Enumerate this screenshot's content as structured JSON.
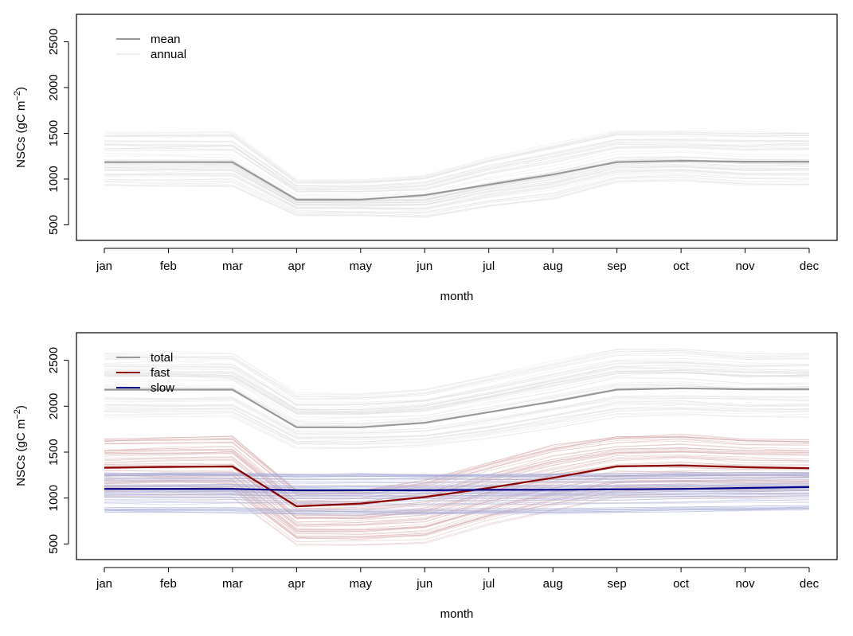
{
  "chart_data": [
    {
      "type": "line",
      "xlabel": "month",
      "ylabel": "NSCs (gC m",
      "ylabel_unit_exp": "−2",
      "ylabel_tail": ")",
      "x": [
        "jan",
        "feb",
        "mar",
        "apr",
        "may",
        "jun",
        "jul",
        "aug",
        "sep",
        "oct",
        "nov",
        "dec"
      ],
      "yticks": [
        500,
        1000,
        1500,
        2000,
        2500
      ],
      "ylim": [
        330,
        2800
      ],
      "grid": false,
      "legend_placement": "top-left",
      "legend": [
        {
          "label": "mean",
          "color": "#999999"
        },
        {
          "label": "annual",
          "color": "#eeeeee"
        }
      ],
      "series": [
        {
          "name": "mean",
          "color": "#999999",
          "values": [
            1185,
            1185,
            1185,
            775,
            775,
            825,
            940,
            1050,
            1185,
            1200,
            1190,
            1190
          ]
        }
      ],
      "annual_band": {
        "color": "#dddddd",
        "upper": [
          1530,
          1530,
          1530,
          1000,
          1000,
          1050,
          1250,
          1400,
          1540,
          1540,
          1530,
          1530
        ],
        "lower": [
          920,
          920,
          920,
          600,
          600,
          580,
          700,
          780,
          960,
          980,
          930,
          930
        ]
      }
    },
    {
      "type": "line",
      "xlabel": "month",
      "ylabel": "NSCs (gC m",
      "ylabel_unit_exp": "−2",
      "ylabel_tail": ")",
      "x": [
        "jan",
        "feb",
        "mar",
        "apr",
        "may",
        "jun",
        "jul",
        "aug",
        "sep",
        "oct",
        "nov",
        "dec"
      ],
      "yticks": [
        500,
        1000,
        1500,
        2000,
        2500
      ],
      "ylim": [
        330,
        2800
      ],
      "grid": false,
      "legend_placement": "top-left",
      "legend": [
        {
          "label": "total",
          "color": "#999999"
        },
        {
          "label": "fast",
          "color": "#8b0000"
        },
        {
          "label": "slow",
          "color": "#00008b"
        }
      ],
      "series": [
        {
          "name": "total",
          "color": "#999999",
          "values": [
            2180,
            2180,
            2180,
            1770,
            1770,
            1820,
            1935,
            2050,
            2180,
            2195,
            2185,
            2185
          ]
        },
        {
          "name": "fast",
          "color": "#8b0000",
          "values": [
            1330,
            1340,
            1345,
            910,
            940,
            1010,
            1110,
            1220,
            1345,
            1355,
            1335,
            1325
          ]
        },
        {
          "name": "slow",
          "color": "#00008b",
          "values": [
            1100,
            1100,
            1100,
            1085,
            1085,
            1085,
            1090,
            1090,
            1095,
            1100,
            1110,
            1120
          ]
        }
      ],
      "annual_bands": [
        {
          "series": "total",
          "color": "#dddddd",
          "upper": [
            2600,
            2600,
            2600,
            2150,
            2150,
            2200,
            2350,
            2500,
            2650,
            2650,
            2600,
            2600
          ],
          "lower": [
            1880,
            1880,
            1880,
            1540,
            1540,
            1560,
            1650,
            1760,
            1880,
            1900,
            1880,
            1880
          ]
        },
        {
          "series": "fast",
          "color": "#d4a5a5",
          "upper": [
            1660,
            1670,
            1680,
            1100,
            1100,
            1200,
            1400,
            1580,
            1680,
            1700,
            1660,
            1650
          ],
          "lower": [
            1000,
            1000,
            1000,
            480,
            480,
            500,
            700,
            850,
            1000,
            1000,
            1000,
            1000
          ]
        },
        {
          "series": "slow",
          "color": "#a5a8d4",
          "upper": [
            1280,
            1280,
            1280,
            1270,
            1270,
            1270,
            1270,
            1270,
            1270,
            1280,
            1280,
            1280
          ],
          "lower": [
            820,
            820,
            820,
            800,
            800,
            800,
            810,
            810,
            820,
            830,
            840,
            850
          ]
        }
      ]
    }
  ]
}
